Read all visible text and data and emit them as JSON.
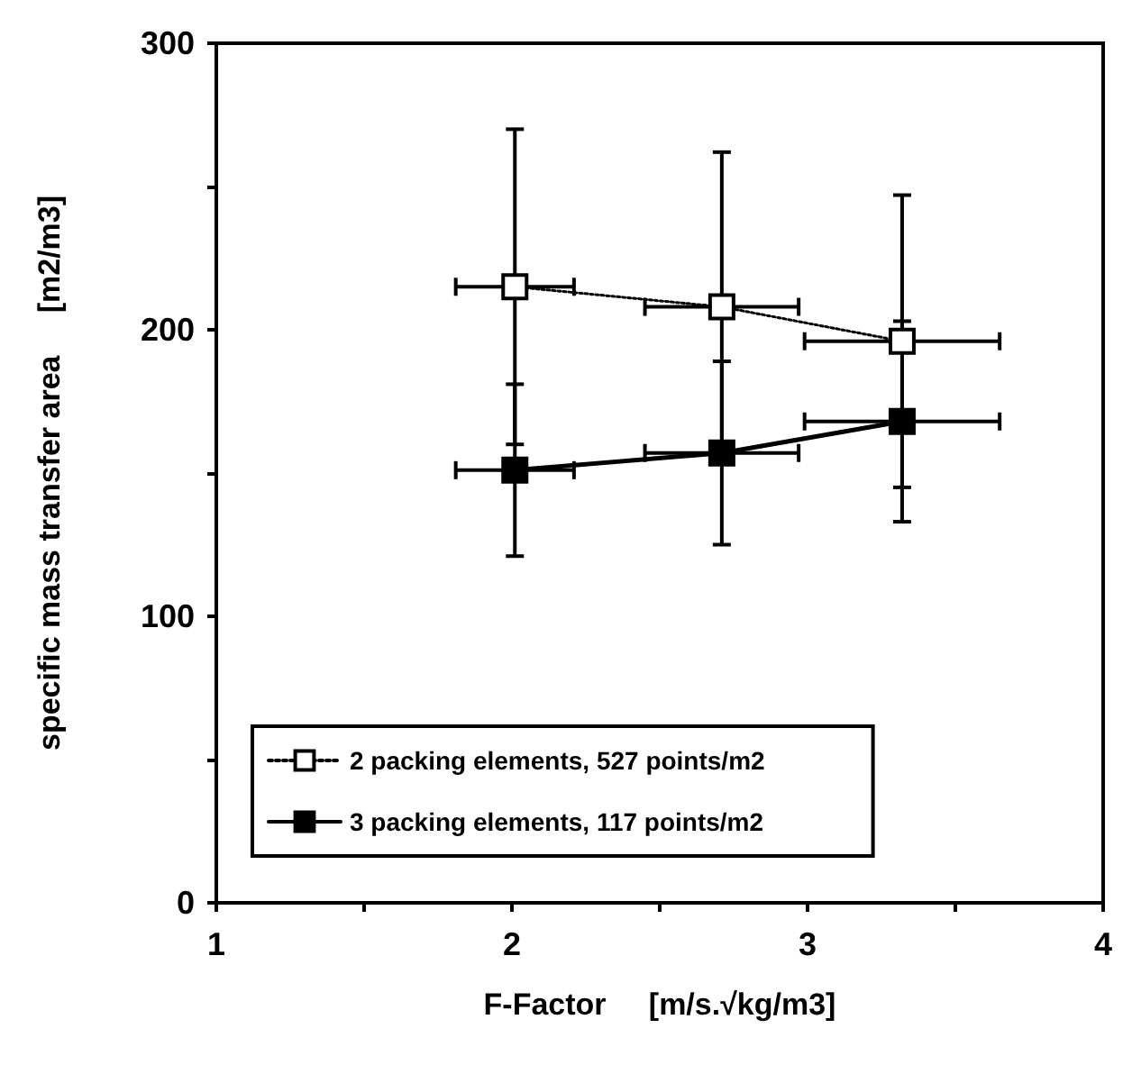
{
  "chart_data": {
    "type": "line",
    "xlabel": "F-Factor     [m/s.√kg/m3]",
    "ylabel": "specific mass transfer area     [m2/m3]",
    "xlim": [
      1,
      4
    ],
    "xticks": [
      1,
      {
        "value": 1.5,
        "label": null
      },
      2,
      {
        "value": 2.5,
        "label": null
      },
      3,
      {
        "value": 3.5,
        "label": null
      },
      4
    ],
    "ylim": [
      0,
      300
    ],
    "yticks": [
      0,
      {
        "value": 50,
        "label": null
      },
      100,
      {
        "value": 150,
        "label": null
      },
      200,
      {
        "value": 250,
        "label": null
      },
      300
    ],
    "grid": false,
    "legend": "bottom left",
    "marker": "square",
    "series": [
      {
        "name": "2 packing elements, 527 points/m2",
        "color": "#000000",
        "line_style": "dotted",
        "x": [
          2.01,
          2.71,
          3.32
        ],
        "values": [
          215,
          208,
          196
        ],
        "errors": [
          55,
          54,
          51
        ],
        "xerrors": [
          0.2,
          0.26,
          0.33
        ]
      },
      {
        "name": "3 packing elements, 117 points/m2",
        "color": "#000000",
        "line_style": "solid",
        "x": [
          2.01,
          2.71,
          3.32
        ],
        "values": [
          151,
          157,
          168
        ],
        "errors": [
          30,
          32,
          35
        ],
        "xerrors": [
          0.2,
          0.26,
          0.33
        ]
      }
    ]
  }
}
